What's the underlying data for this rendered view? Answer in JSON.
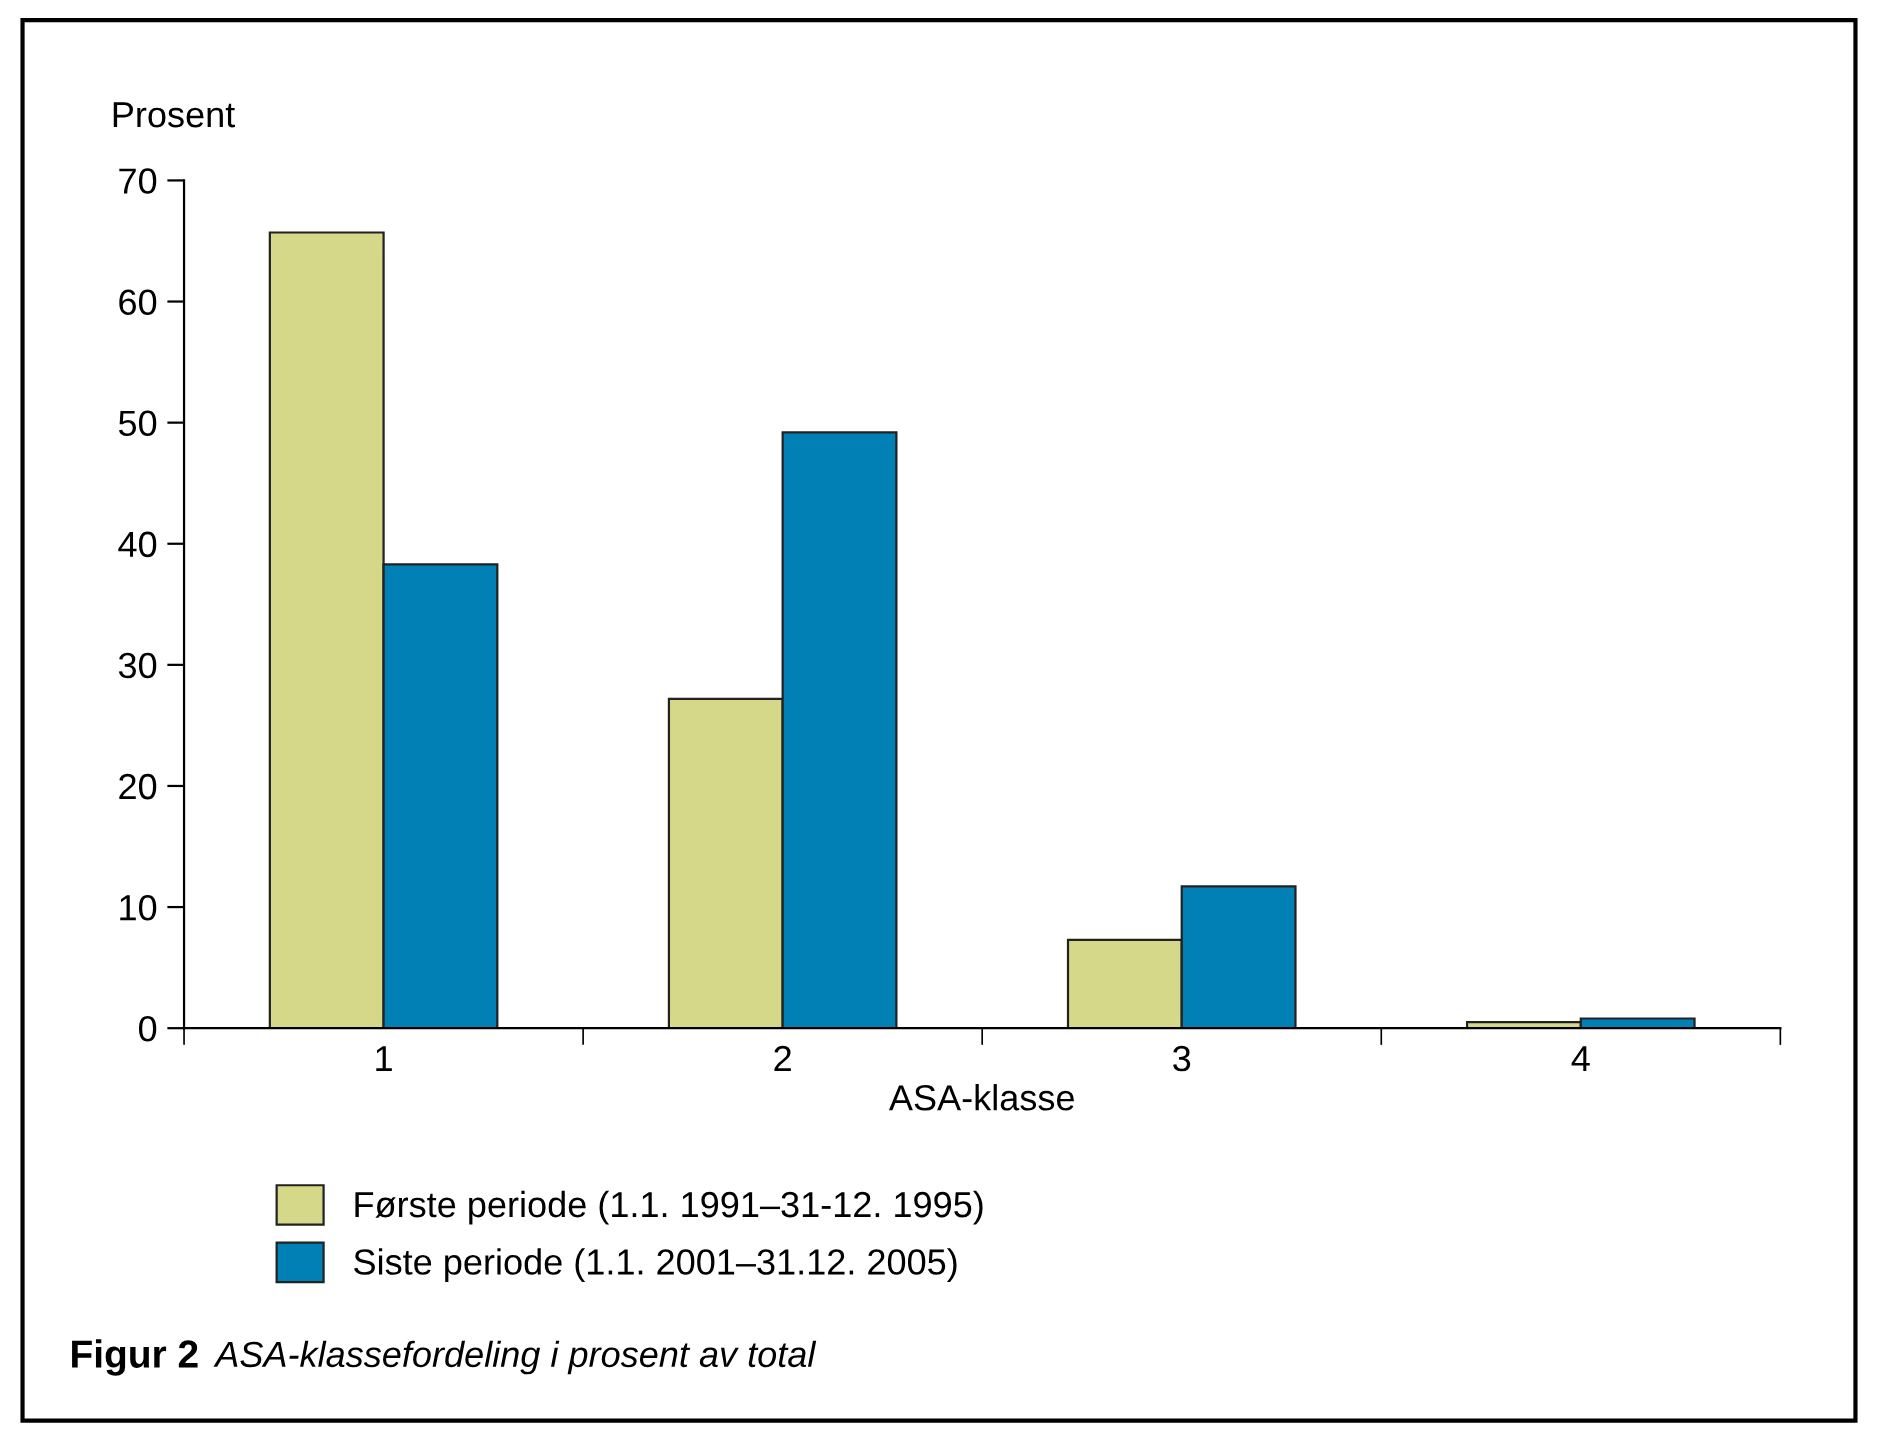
{
  "chart_data": {
    "type": "bar",
    "title": "Figur 2",
    "subtitle": "ASA-klassefordeling i prosent av total",
    "xlabel": "ASA-klasse",
    "ylabel": "Prosent",
    "categories": [
      "1",
      "2",
      "3",
      "4"
    ],
    "series": [
      {
        "name": "Første periode (1.1. 1991–31-12. 1995)",
        "color": "#d6d889",
        "values": [
          65.7,
          27.2,
          7.3,
          0.5
        ]
      },
      {
        "name": "Siste periode (1.1. 2001–31.12. 2005)",
        "color": "#0080b4",
        "values": [
          38.3,
          49.2,
          11.7,
          0.8
        ]
      }
    ],
    "ylim": [
      0,
      70
    ],
    "yticks": [
      0,
      10,
      20,
      30,
      40,
      50,
      60,
      70
    ],
    "grid": false,
    "legend": "bottom"
  }
}
